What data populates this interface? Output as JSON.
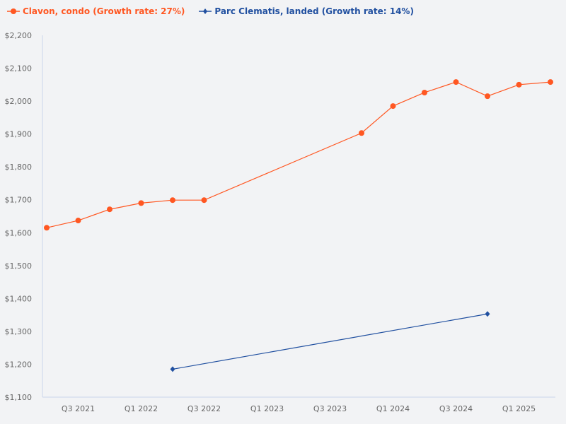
{
  "chart_data": {
    "type": "line",
    "title": "",
    "xlabel": "",
    "ylabel": "",
    "x": [
      "Q2 2021",
      "Q3 2021",
      "Q4 2021",
      "Q1 2022",
      "Q2 2022",
      "Q3 2022",
      "Q4 2022",
      "Q1 2023",
      "Q2 2023",
      "Q3 2023",
      "Q4 2023",
      "Q1 2024",
      "Q2 2024",
      "Q3 2024",
      "Q4 2024",
      "Q1 2025",
      "Q2 2025"
    ],
    "x_tick_labels": [
      "Q3 2021",
      "Q1 2022",
      "Q3 2022",
      "Q1 2023",
      "Q3 2023",
      "Q1 2024",
      "Q3 2024",
      "Q1 2025"
    ],
    "ylim": [
      1100,
      2200
    ],
    "y_ticks": [
      1100,
      1200,
      1300,
      1400,
      1500,
      1600,
      1700,
      1800,
      1900,
      2000,
      2100,
      2200
    ],
    "y_tick_labels": [
      "$1,100",
      "$1,200",
      "$1,300",
      "$1,400",
      "$1,500",
      "$1,600",
      "$1,700",
      "$1,800",
      "$1,900",
      "$2,000",
      "$2,100",
      "$2,200"
    ],
    "grid": false,
    "legend_position": "top-left",
    "series": [
      {
        "name": "Clavon, condo (Growth rate: 27%)",
        "color": "#ff5722",
        "marker": "circle",
        "values": [
          1615,
          1637,
          1671,
          1690,
          1699,
          1699,
          null,
          null,
          null,
          null,
          1903,
          1985,
          2026,
          2058,
          2015,
          2050,
          2058
        ]
      },
      {
        "name": "Parc Clematis, landed (Growth rate: 14%)",
        "color": "#2150a0",
        "marker": "diamond",
        "values": [
          null,
          null,
          null,
          null,
          1185,
          null,
          null,
          null,
          null,
          null,
          null,
          null,
          null,
          null,
          1353,
          null,
          null
        ]
      }
    ]
  }
}
